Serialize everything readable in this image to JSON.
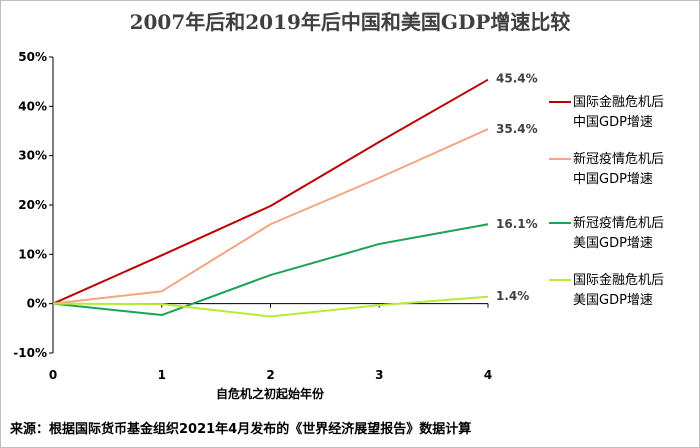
{
  "chart_data": {
    "type": "line",
    "title": "2007年后和2019年后中国和美国GDP增速比较",
    "xlabel": "自危机之初起始年份",
    "ylabel": "",
    "x": [
      0,
      1,
      2,
      3,
      4
    ],
    "x_ticks": [
      "0",
      "1",
      "2",
      "3",
      "4"
    ],
    "ylim": [
      -10,
      50
    ],
    "y_ticks": [
      "-10%",
      "0%",
      "10%",
      "20%",
      "30%",
      "40%",
      "50%"
    ],
    "legend_position": "right",
    "series": [
      {
        "name": "国际金融危机后中国GDP增速",
        "name_lines": [
          "国际金融危机后",
          "中国GDP增速"
        ],
        "values": [
          0,
          9.8,
          19.8,
          32.8,
          45.4
        ],
        "end_label": "45.4%",
        "color": "#c00000"
      },
      {
        "name": "新冠疫情危机后中国GDP增速",
        "name_lines": [
          "新冠疫情危机后",
          "中国GDP增速"
        ],
        "values": [
          0,
          2.5,
          16.1,
          25.5,
          35.4
        ],
        "end_label": "35.4%",
        "color": "#f4a582"
      },
      {
        "name": "新冠疫情危机后美国GDP增速",
        "name_lines": [
          "新冠疫情危机后",
          "美国GDP增速"
        ],
        "values": [
          0,
          -2.3,
          5.8,
          12.1,
          16.1
        ],
        "end_label": "16.1%",
        "color": "#1aa454"
      },
      {
        "name": "国际金融危机后美国GDP增速",
        "name_lines": [
          "国际金融危机后",
          "美国GDP增速"
        ],
        "values": [
          0,
          -0.1,
          -2.6,
          -0.3,
          1.4
        ],
        "end_label": "1.4%",
        "color": "#b7eb34"
      }
    ]
  },
  "source_note": "来源：根据国际货币基金组织2021年4月发布的《世界经济展望报告》数据计算"
}
